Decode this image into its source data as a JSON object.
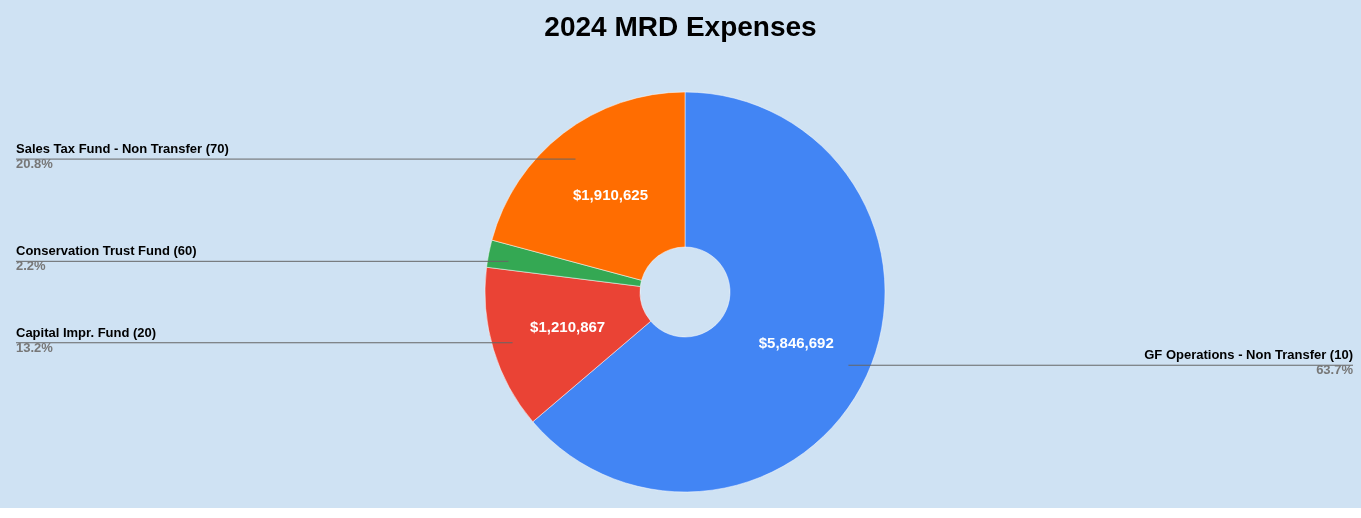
{
  "chart_data": {
    "type": "donut",
    "title": "2024 MRD Expenses",
    "categories": [
      "GF Operations - Non Transfer (10)",
      "Capital Impr. Fund (20)",
      "Conservation Trust Fund (60)",
      "Sales Tax Fund - Non Transfer (70)"
    ],
    "values": [
      63.7,
      13.2,
      2.2,
      20.8
    ],
    "colors": [
      "#4285f4",
      "#ea4335",
      "#34a853",
      "#ff6d01"
    ],
    "value_labels": [
      "63.7%",
      "13.2%",
      "2.2%",
      "20.8%"
    ],
    "annotations": [
      {
        "text": "$5,846,692",
        "x": "GF Operations - Non Transfer (10)"
      },
      {
        "text": "$1,210,867",
        "x": "Capital Impr. Fund (20)"
      },
      {
        "text": "$1,910,625",
        "x": "Sales Tax Fund - Non Transfer (70)"
      }
    ],
    "legend": false
  }
}
